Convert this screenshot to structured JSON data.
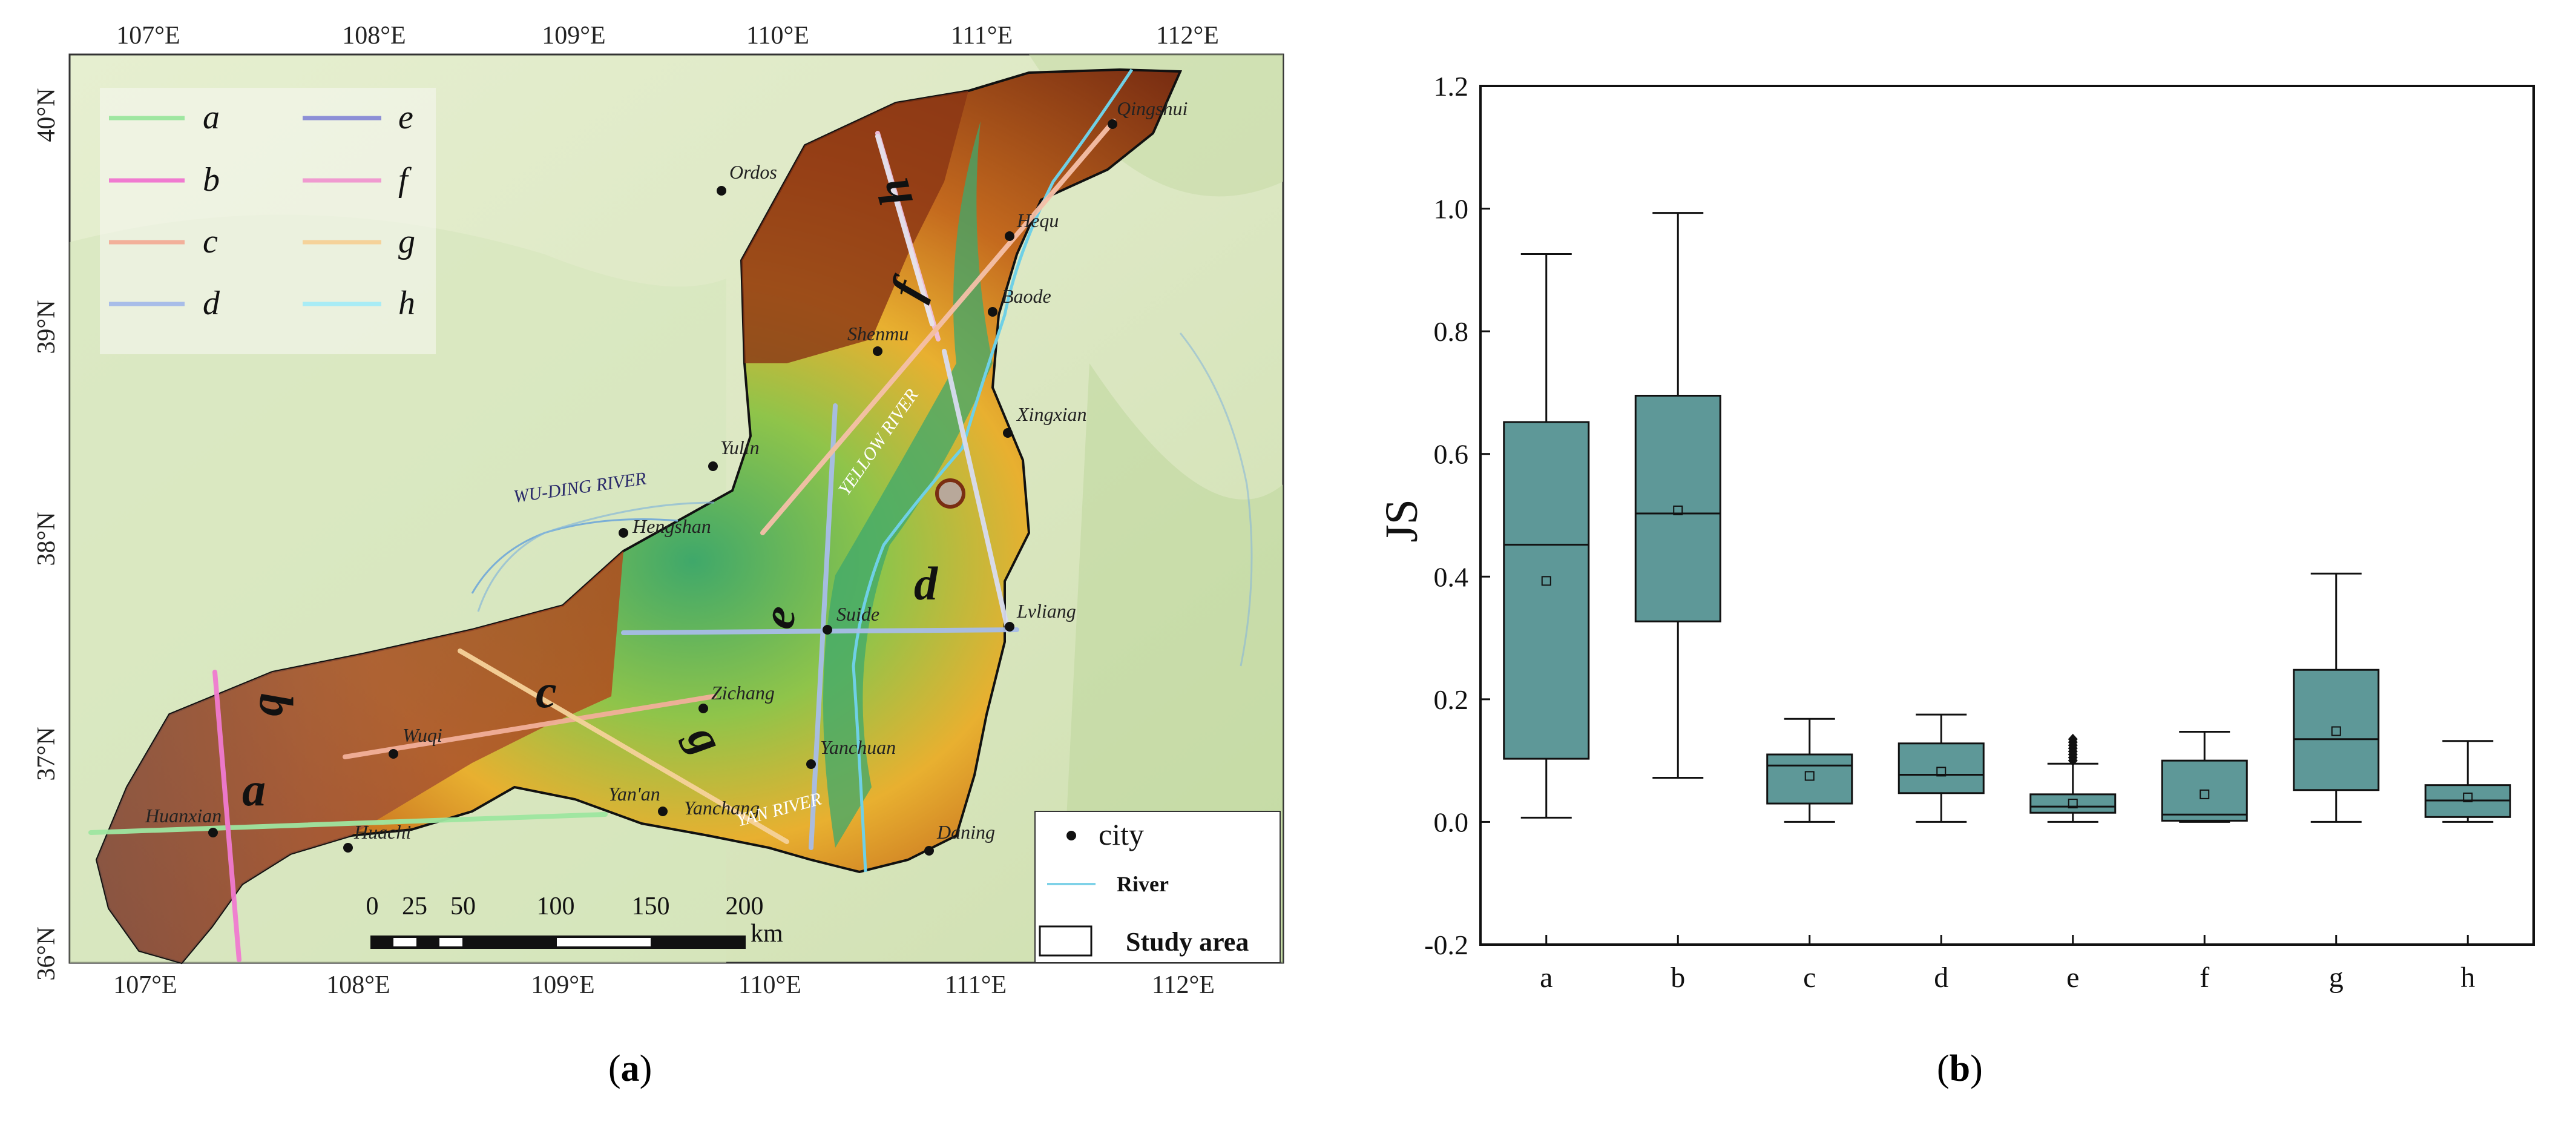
{
  "map": {
    "lon_ticks": [
      "107°E",
      "108°E",
      "109°E",
      "110°E",
      "111°E",
      "112°E"
    ],
    "lat_ticks": [
      "40°N",
      "39°N",
      "38°N",
      "37°N",
      "36°N"
    ],
    "lines": [
      {
        "key": "a",
        "color": "#9ee6a0"
      },
      {
        "key": "b",
        "color": "#f07ad0"
      },
      {
        "key": "c",
        "color": "#f2b09a"
      },
      {
        "key": "d",
        "color": "#a8bde8"
      },
      {
        "key": "e",
        "color": "#8c8fd6"
      },
      {
        "key": "f",
        "color": "#f09ad0"
      },
      {
        "key": "g",
        "color": "#f5d29a"
      },
      {
        "key": "h",
        "color": "#a8ecf5"
      }
    ],
    "cities": [
      "Qingshui",
      "Ordos",
      "Hequ",
      "Baode",
      "Shenmu",
      "Xingxian",
      "Yulin",
      "Hengshan",
      "Suide",
      "Lvliang",
      "Zichang",
      "Wuqi",
      "Yanchuan",
      "Yan'an",
      "Yanchang",
      "Huanxian",
      "Huachi",
      "Daning"
    ],
    "rivers": [
      "WU-DING RIVER",
      "YELLOW RIVER",
      "YAN RIVER"
    ],
    "profile_labels": [
      "a",
      "b",
      "c",
      "d",
      "e",
      "f",
      "g",
      "h"
    ],
    "scale_numbers": [
      "0",
      "25",
      "50",
      "100",
      "150",
      "200"
    ],
    "scale_unit": "km",
    "legend2": {
      "city": "city",
      "river": "River",
      "study": "Study area"
    }
  },
  "chart_data": {
    "type": "box",
    "categories": [
      "a",
      "b",
      "c",
      "d",
      "e",
      "f",
      "g",
      "h"
    ],
    "ylabel": "JS",
    "xlabel": "",
    "ylim": [
      -0.2,
      1.2
    ],
    "yticks": [
      "-0.2",
      "0.0",
      "0.2",
      "0.4",
      "0.6",
      "0.8",
      "1.0",
      "1.2"
    ],
    "box_color": "#5e9898",
    "boxes": [
      {
        "min": 0.007,
        "q1": 0.103,
        "median": 0.452,
        "q3": 0.652,
        "max": 0.926,
        "mean": 0.393
      },
      {
        "min": 0.072,
        "q1": 0.327,
        "median": 0.503,
        "q3": 0.695,
        "max": 0.993,
        "mean": 0.508
      },
      {
        "min": 0.0,
        "q1": 0.03,
        "median": 0.092,
        "q3": 0.11,
        "max": 0.168,
        "mean": 0.075
      },
      {
        "min": 0.0,
        "q1": 0.047,
        "median": 0.077,
        "q3": 0.128,
        "max": 0.175,
        "mean": 0.082
      },
      {
        "min": 0.0,
        "q1": 0.015,
        "median": 0.025,
        "q3": 0.045,
        "max": 0.095,
        "mean": 0.03,
        "outliers": [
          0.1,
          0.105,
          0.11,
          0.115,
          0.12,
          0.125,
          0.13,
          0.135
        ]
      },
      {
        "min": 0.0,
        "q1": 0.002,
        "median": 0.012,
        "q3": 0.1,
        "max": 0.147,
        "mean": 0.045
      },
      {
        "min": 0.0,
        "q1": 0.052,
        "median": 0.135,
        "q3": 0.248,
        "max": 0.405,
        "mean": 0.148
      },
      {
        "min": 0.0,
        "q1": 0.008,
        "median": 0.035,
        "q3": 0.06,
        "max": 0.132,
        "mean": 0.04
      }
    ]
  },
  "captions": {
    "a": "a",
    "b": "b"
  }
}
